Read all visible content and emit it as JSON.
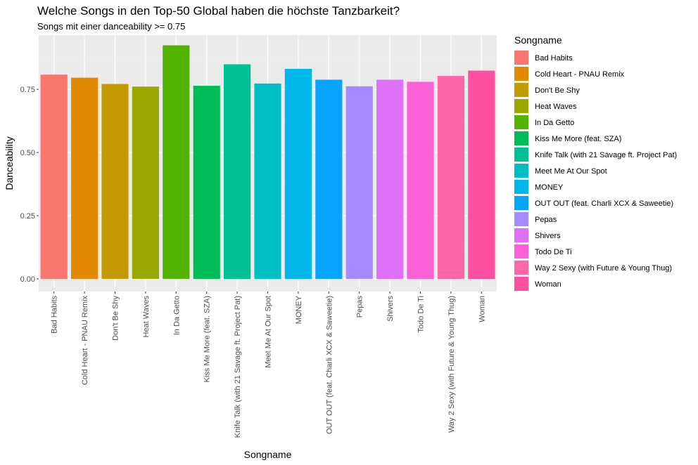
{
  "chart_data": {
    "type": "bar",
    "title": "Welche Songs in den Top-50 Global haben die höchste Tanzbarkeit?",
    "subtitle": "Songs mit einer danceability >= 0.75",
    "xlabel": "Songname",
    "ylabel": "Danceability",
    "ylim": [
      0,
      0.95
    ],
    "yticks": [
      0.0,
      0.25,
      0.5,
      0.75
    ],
    "ytick_labels": [
      "0.00",
      "0.25",
      "0.50",
      "0.75"
    ],
    "grid": true,
    "legend": {
      "title": "Songname",
      "position": "right"
    },
    "categories": [
      "Bad Habits",
      "Cold Heart - PNAU Remix",
      "Don't Be Shy",
      "Heat Waves",
      "In Da Getto",
      "Kiss Me More (feat. SZA)",
      "Knife Talk (with 21 Savage ft. Project Pat)",
      "Meet Me At Our Spot",
      "MONEY",
      "OUT OUT (feat. Charli XCX & Saweetie)",
      "Pepas",
      "Shivers",
      "Todo De Ti",
      "Way 2 Sexy (with Future & Young Thug)",
      "Woman"
    ],
    "values": [
      0.808,
      0.796,
      0.771,
      0.761,
      0.924,
      0.764,
      0.849,
      0.773,
      0.831,
      0.788,
      0.762,
      0.788,
      0.78,
      0.803,
      0.824
    ],
    "colors": [
      "#F8766D",
      "#E38900",
      "#C49A00",
      "#99A800",
      "#53B400",
      "#00BC56",
      "#00C094",
      "#00BFC4",
      "#00B6EB",
      "#06A4FF",
      "#A58AFF",
      "#DF70F8",
      "#FB61D7",
      "#FF66A8",
      "#FF4FA0"
    ]
  }
}
